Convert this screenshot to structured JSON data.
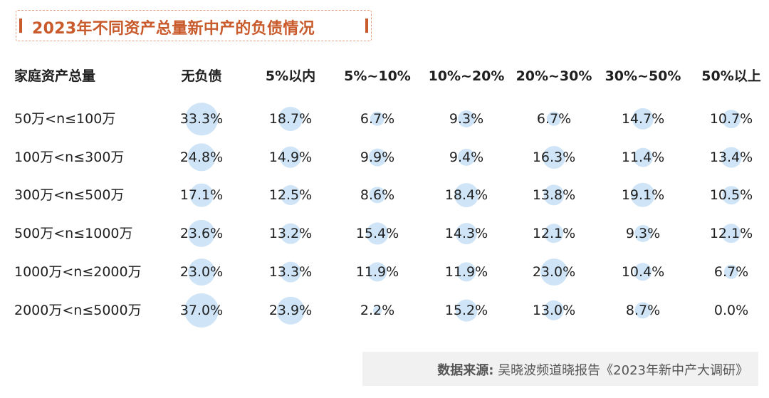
{
  "title": "2023年不同资产总量新中产的负债情况",
  "source": {
    "label": "数据来源:",
    "text": "吴晓波频道晓报告《2023年新中产大调研》"
  },
  "colors": {
    "accent": "#c85a2b",
    "bubble": "#cfe5f7"
  },
  "chart_data": {
    "type": "table",
    "row_header": "家庭资产总量",
    "columns": [
      "无负债",
      "5%以内",
      "5%~10%",
      "10%~20%",
      "20%~30%",
      "30%~50%",
      "50%以上"
    ],
    "rows": [
      {
        "label": "50万<n≤100万",
        "values": [
          "33.3%",
          "18.7%",
          "6.7%",
          "9.3%",
          "6.7%",
          "14.7%",
          "10.7%"
        ]
      },
      {
        "label": "100万<n≤300万",
        "values": [
          "24.8%",
          "14.9%",
          "9.9%",
          "9.4%",
          "16.3%",
          "11.4%",
          "13.4%"
        ]
      },
      {
        "label": "300万<n≤500万",
        "values": [
          "17.1%",
          "12.5%",
          "8.6%",
          "18.4%",
          "13.8%",
          "19.1%",
          "10.5%"
        ]
      },
      {
        "label": "500万<n≤1000万",
        "values": [
          "23.6%",
          "13.2%",
          "15.4%",
          "14.3%",
          "12.1%",
          "9.3%",
          "12.1%"
        ]
      },
      {
        "label": "1000万<n≤2000万",
        "values": [
          "23.0%",
          "13.3%",
          "11.9%",
          "11.9%",
          "23.0%",
          "10.4%",
          "6.7%"
        ]
      },
      {
        "label": "2000万<n≤5000万",
        "values": [
          "37.0%",
          "23.9%",
          "2.2%",
          "15.2%",
          "13.0%",
          "8.7%",
          "0.0%"
        ]
      }
    ]
  }
}
